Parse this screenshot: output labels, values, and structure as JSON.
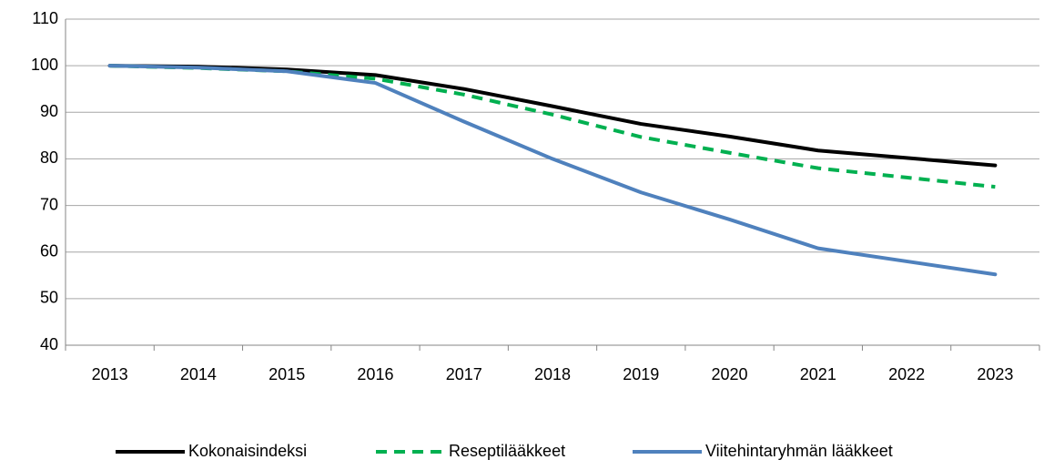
{
  "chart_data": {
    "type": "line",
    "categories": [
      "2013",
      "2014",
      "2015",
      "2016",
      "2017",
      "2018",
      "2019",
      "2020",
      "2021",
      "2022",
      "2023"
    ],
    "series": [
      {
        "name": "Kokonaisindeksi",
        "color": "#000000",
        "dash": false,
        "values": [
          100,
          99.8,
          99.2,
          98,
          95,
          91.3,
          87.5,
          84.8,
          81.8,
          80.2,
          78.6
        ]
      },
      {
        "name": "Reseptilääkkeet",
        "color": "#00b050",
        "dash": true,
        "values": [
          100,
          99.5,
          98.8,
          97.2,
          93.8,
          89.5,
          84.7,
          81.3,
          78,
          76,
          74
        ]
      },
      {
        "name": "Viitehintaryhmän lääkkeet",
        "color": "#4f81bd",
        "dash": false,
        "values": [
          100,
          99.6,
          98.8,
          96.3,
          88,
          80,
          72.8,
          67,
          60.8,
          58,
          55.2
        ]
      }
    ],
    "ylim": [
      40,
      110
    ],
    "yticks": [
      40,
      50,
      60,
      70,
      80,
      90,
      100,
      110
    ],
    "grid": true,
    "legend": "bottom"
  }
}
